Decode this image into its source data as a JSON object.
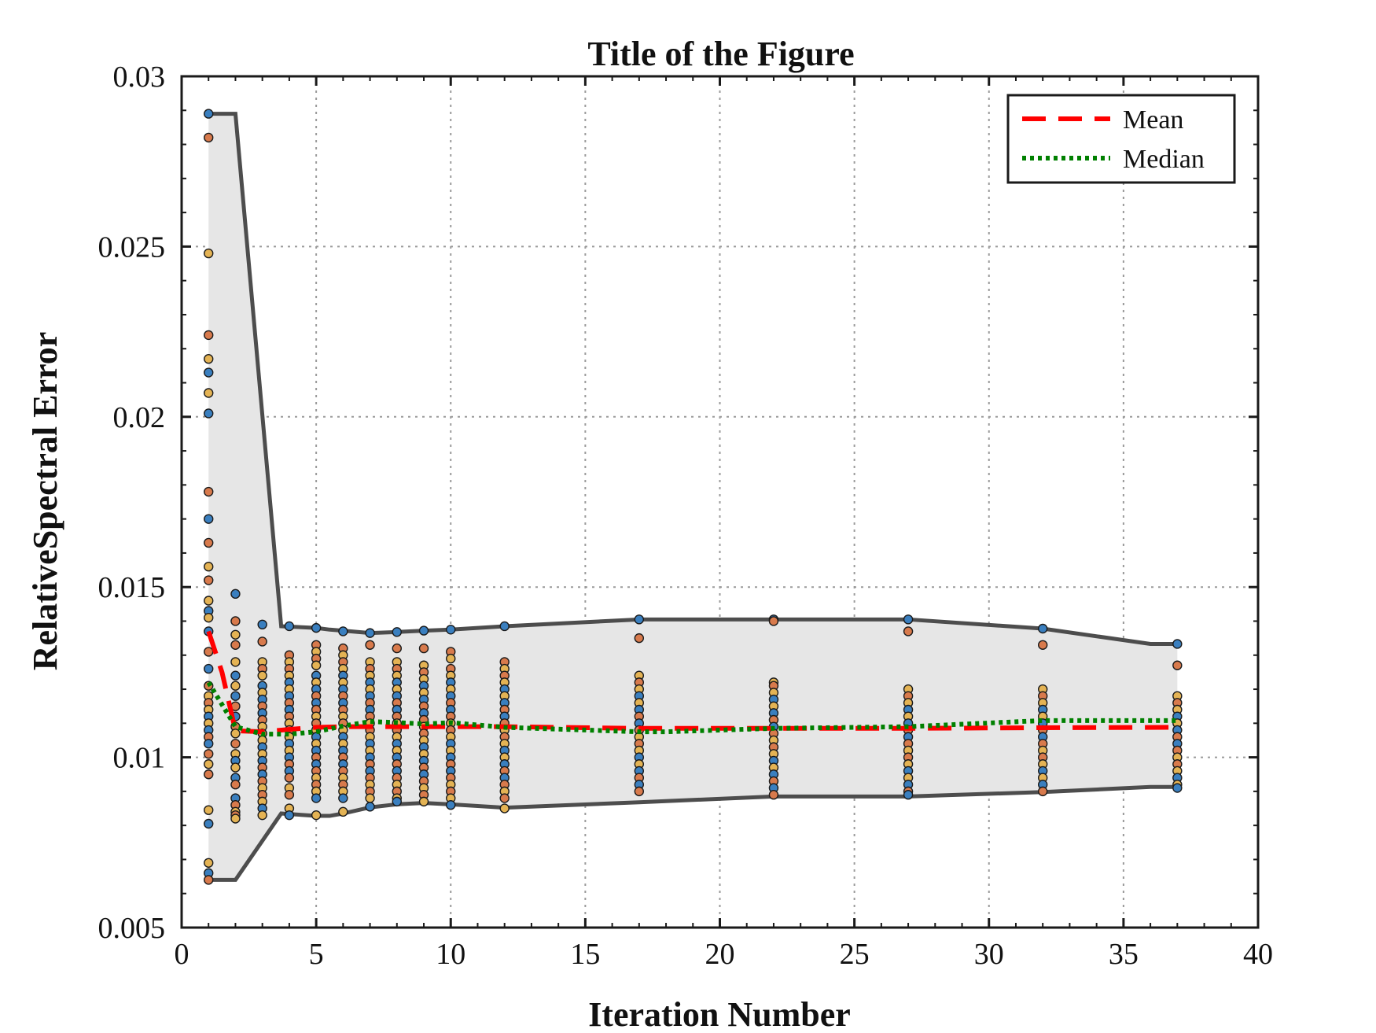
{
  "chart_data": {
    "type": "scatter",
    "title": "Title of the Figure",
    "xlabel": "Iteration Number",
    "ylabel": "RelativeSpectral Error",
    "xlim": [
      0,
      40
    ],
    "ylim": [
      0.005,
      0.03
    ],
    "xticks": [
      0,
      5,
      10,
      15,
      20,
      25,
      30,
      35,
      40
    ],
    "xtick_labels": [
      "0",
      "5",
      "10",
      "15",
      "20",
      "25",
      "30",
      "35",
      "40"
    ],
    "yticks": [
      0.005,
      0.01,
      0.015,
      0.02,
      0.025,
      0.03
    ],
    "ytick_labels": [
      "0.005",
      "0.01",
      "0.015",
      "0.02",
      "0.025",
      "0.03"
    ],
    "grid": true,
    "legend_position": "top-right",
    "colors": {
      "band_fill": "#e6e6e6",
      "envelope_line": "#4d4d4d",
      "mean_line": "#ff0000",
      "median_line": "#008000",
      "point_blue": "#3a7fbf",
      "point_orange": "#d87a4c",
      "point_gold": "#e4b354"
    },
    "envelope": {
      "x": [
        1,
        2,
        3.7,
        5,
        5.5,
        6,
        7,
        8,
        9,
        10,
        12,
        17,
        22,
        27,
        32,
        36,
        37
      ],
      "upper": [
        0.0289,
        0.0289,
        0.01385,
        0.0138,
        0.01375,
        0.01372,
        0.01365,
        0.01368,
        0.01372,
        0.01375,
        0.01385,
        0.01405,
        0.01405,
        0.01405,
        0.01378,
        0.01333,
        0.01333
      ],
      "lower": [
        0.0064,
        0.0064,
        0.00835,
        0.00828,
        0.00828,
        0.00835,
        0.00853,
        0.00862,
        0.00866,
        0.00862,
        0.00852,
        0.00868,
        0.00885,
        0.00885,
        0.00898,
        0.00913,
        0.00913
      ]
    },
    "series": [
      {
        "name": "Mean",
        "style": "dashed",
        "x": [
          1,
          1.5,
          2,
          3,
          4,
          5,
          6,
          7,
          8,
          9,
          10,
          12,
          17,
          22,
          27,
          32,
          37
        ],
        "y": [
          0.0137,
          0.0125,
          0.01078,
          0.01075,
          0.01082,
          0.01088,
          0.0109,
          0.0109,
          0.0109,
          0.0109,
          0.0109,
          0.0109,
          0.01085,
          0.01085,
          0.01085,
          0.01087,
          0.01088
        ]
      },
      {
        "name": "Median",
        "style": "dotted",
        "x": [
          1,
          2,
          3,
          4,
          5,
          6,
          7,
          8,
          9,
          10,
          12,
          17,
          18,
          22,
          27,
          32,
          37
        ],
        "y": [
          0.0122,
          0.0109,
          0.01068,
          0.01068,
          0.01075,
          0.01092,
          0.01105,
          0.01102,
          0.01098,
          0.01102,
          0.01088,
          0.01075,
          0.01075,
          0.01085,
          0.0109,
          0.01108,
          0.01108
        ]
      }
    ],
    "points": {
      "x_positions": [
        1,
        2,
        3,
        4,
        5,
        6,
        7,
        8,
        9,
        10,
        12,
        17,
        22,
        27,
        32,
        37
      ],
      "y_values": [
        [
          0.0289,
          0.0282,
          0.0248,
          0.0224,
          0.0217,
          0.0213,
          0.0207,
          0.0201,
          0.0178,
          0.017,
          0.0163,
          0.0156,
          0.0152,
          0.0146,
          0.0143,
          0.0141,
          0.0137,
          0.0131,
          0.0126,
          0.0121,
          0.0118,
          0.0116,
          0.0114,
          0.0112,
          0.011,
          0.0108,
          0.0106,
          0.0104,
          0.0101,
          0.0098,
          0.0095,
          0.00845,
          0.00805,
          0.0069,
          0.0066,
          0.0064
        ],
        [
          0.0148,
          0.014,
          0.0136,
          0.0133,
          0.0128,
          0.0124,
          0.0121,
          0.0118,
          0.0115,
          0.0112,
          0.0109,
          0.0107,
          0.0104,
          0.0101,
          0.0099,
          0.0097,
          0.0094,
          0.0092,
          0.0088,
          0.0086,
          0.0084,
          0.0083,
          0.0082
        ],
        [
          0.0139,
          0.0134,
          0.0128,
          0.0126,
          0.0124,
          0.0121,
          0.0119,
          0.0117,
          0.0115,
          0.0113,
          0.0111,
          0.0109,
          0.0107,
          0.0105,
          0.0103,
          0.0101,
          0.0099,
          0.0097,
          0.0095,
          0.0093,
          0.0091,
          0.0089,
          0.0087,
          0.0085,
          0.0083
        ],
        [
          0.01385,
          0.013,
          0.0128,
          0.0126,
          0.0124,
          0.0122,
          0.012,
          0.0118,
          0.0116,
          0.0114,
          0.0112,
          0.011,
          0.0108,
          0.0106,
          0.0104,
          0.0102,
          0.01,
          0.0098,
          0.0096,
          0.0094,
          0.0091,
          0.0089,
          0.0085,
          0.0083
        ],
        [
          0.0138,
          0.0133,
          0.0131,
          0.0129,
          0.0127,
          0.0124,
          0.0122,
          0.012,
          0.0118,
          0.0116,
          0.0114,
          0.0112,
          0.011,
          0.0108,
          0.0106,
          0.0104,
          0.0102,
          0.01,
          0.0098,
          0.0096,
          0.0094,
          0.0092,
          0.009,
          0.0088,
          0.0083
        ],
        [
          0.0137,
          0.0132,
          0.013,
          0.0128,
          0.0126,
          0.0124,
          0.0122,
          0.012,
          0.0118,
          0.0116,
          0.0114,
          0.0112,
          0.011,
          0.0108,
          0.0106,
          0.0104,
          0.0102,
          0.01,
          0.0098,
          0.0096,
          0.0094,
          0.0092,
          0.009,
          0.0088,
          0.0084
        ],
        [
          0.01365,
          0.0133,
          0.0128,
          0.0126,
          0.0124,
          0.0122,
          0.012,
          0.0118,
          0.0116,
          0.0114,
          0.0112,
          0.011,
          0.0108,
          0.0106,
          0.0104,
          0.0102,
          0.01,
          0.0098,
          0.0096,
          0.0094,
          0.0092,
          0.009,
          0.0088,
          0.00855
        ],
        [
          0.01368,
          0.0132,
          0.0128,
          0.0126,
          0.0124,
          0.0122,
          0.012,
          0.0118,
          0.0116,
          0.0114,
          0.0112,
          0.011,
          0.0108,
          0.0106,
          0.0104,
          0.0102,
          0.01,
          0.0098,
          0.0096,
          0.0094,
          0.0092,
          0.009,
          0.0088,
          0.0087
        ],
        [
          0.01372,
          0.0132,
          0.0127,
          0.0125,
          0.0123,
          0.0121,
          0.0119,
          0.0117,
          0.0115,
          0.0113,
          0.0111,
          0.0109,
          0.0107,
          0.0105,
          0.0103,
          0.0101,
          0.0099,
          0.0097,
          0.0095,
          0.0093,
          0.0091,
          0.0089,
          0.0087
        ],
        [
          0.01375,
          0.0131,
          0.0129,
          0.0126,
          0.0124,
          0.0122,
          0.012,
          0.0118,
          0.0116,
          0.0114,
          0.0112,
          0.011,
          0.0108,
          0.0106,
          0.0104,
          0.0102,
          0.01,
          0.0098,
          0.0096,
          0.0094,
          0.0092,
          0.009,
          0.0088,
          0.0086
        ],
        [
          0.01385,
          0.0128,
          0.0126,
          0.0124,
          0.0122,
          0.012,
          0.0118,
          0.0116,
          0.0114,
          0.0112,
          0.011,
          0.0108,
          0.0106,
          0.0104,
          0.0102,
          0.01,
          0.0098,
          0.0096,
          0.0094,
          0.0092,
          0.009,
          0.0088,
          0.0085
        ],
        [
          0.01405,
          0.0135,
          0.0124,
          0.0122,
          0.012,
          0.0118,
          0.0116,
          0.0114,
          0.0112,
          0.011,
          0.0108,
          0.0106,
          0.0104,
          0.0102,
          0.01,
          0.0098,
          0.0096,
          0.0094,
          0.0092,
          0.009
        ],
        [
          0.01405,
          0.014,
          0.0122,
          0.0121,
          0.0119,
          0.0117,
          0.0115,
          0.0113,
          0.0111,
          0.0109,
          0.0107,
          0.0105,
          0.0103,
          0.0101,
          0.0099,
          0.0097,
          0.0095,
          0.0093,
          0.0091,
          0.0089
        ],
        [
          0.01405,
          0.0137,
          0.012,
          0.0118,
          0.0116,
          0.0114,
          0.0112,
          0.011,
          0.0108,
          0.0106,
          0.0104,
          0.0102,
          0.01,
          0.0098,
          0.0096,
          0.0094,
          0.0092,
          0.009,
          0.0089
        ],
        [
          0.01378,
          0.0133,
          0.012,
          0.0118,
          0.0116,
          0.0114,
          0.0112,
          0.011,
          0.0108,
          0.0106,
          0.0104,
          0.0102,
          0.01,
          0.0098,
          0.0096,
          0.0094,
          0.0092,
          0.009
        ],
        [
          0.01333,
          0.0127,
          0.0118,
          0.0116,
          0.0114,
          0.0112,
          0.011,
          0.0108,
          0.0106,
          0.0104,
          0.0102,
          0.01,
          0.0098,
          0.0096,
          0.0094,
          0.0092,
          0.0091
        ]
      ]
    }
  }
}
